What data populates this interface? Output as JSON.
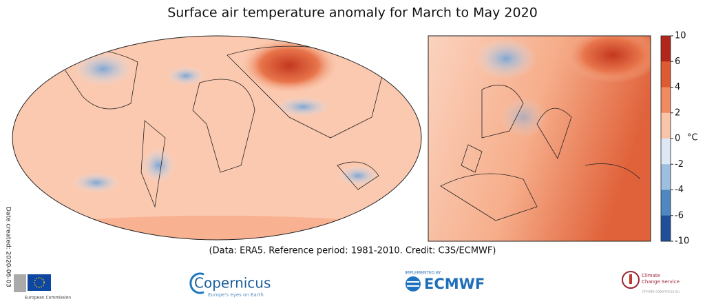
{
  "header": {
    "title": "Surface air temperature anomaly for March to May 2020"
  },
  "maps": {
    "global_label": null
  },
  "colorbar": {
    "ticks": [
      10,
      6,
      4,
      2,
      0,
      -2,
      -4,
      -6,
      -10
    ],
    "unit": "°C",
    "colors": [
      "#b2261c",
      "#dd5a32",
      "#f08a5f",
      "#f9c4a7",
      "#dde8f4",
      "#9cbfe0",
      "#4f87c2",
      "#1f4f99"
    ]
  },
  "credit": "(Data: ERA5.  Reference period: 1981-2010.  Credit: C3S/ECMWF)",
  "date_created": "Date created: 2020-06-03",
  "logos": {
    "eu": "European Commission",
    "copernicus": "Copernicus",
    "copernicus_tagline": "Europe's eyes on Earth",
    "ecmwf_prefix": "IMPLEMENTED BY",
    "ecmwf": "ECMWF",
    "c3s_line1": "Climate",
    "c3s_line2": "Change Service",
    "c3s_url": "climate.copernicus.eu"
  }
}
